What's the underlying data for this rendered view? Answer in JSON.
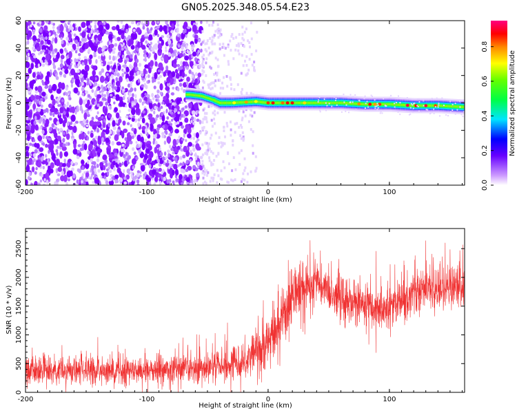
{
  "figure": {
    "title": "GN05.2025.348.05.54.E23"
  },
  "colors": {
    "snr_line": "#f03232",
    "frame": "#000000",
    "background": "#ffffff"
  },
  "chart_data": [
    {
      "type": "heatmap",
      "title": "",
      "xlabel": "Height of straight line (km)",
      "ylabel": "Frequency (Hz)",
      "xlim": [
        -200,
        162
      ],
      "ylim": [
        -60,
        60
      ],
      "x_ticks": [
        "-200",
        "-100",
        "0",
        "100"
      ],
      "y_ticks": [
        "60",
        "40",
        "20",
        "0",
        "-20",
        "-40",
        "-60"
      ],
      "grid": false,
      "colorbar": {
        "label": "Normalized spectral amplitude",
        "range": [
          0,
          0.95
        ],
        "ticks": [
          "0.0",
          "0.2",
          "0.4",
          "0.6",
          "0.8"
        ],
        "colormap": "purple-blue-cyan-green-yellow-red-magenta"
      },
      "features": {
        "noise_region_x": [
          -200,
          -55
        ],
        "sparse_noise_region_x": [
          -55,
          -10
        ],
        "ridge": {
          "description_points_x": [
            -65,
            -55,
            -45,
            -40,
            -30,
            -10,
            0,
            20,
            40,
            60,
            80,
            100,
            120,
            140,
            162
          ],
          "description_points_y": [
            6,
            5,
            2,
            0,
            0,
            1,
            0,
            0,
            0,
            0,
            -1,
            -1,
            -2,
            -2,
            -3
          ]
        }
      }
    },
    {
      "type": "line",
      "title": "",
      "xlabel": "Height of straight line (km)",
      "ylabel": "SNR (10 * v/v)",
      "xlim": [
        -200,
        162
      ],
      "ylim": [
        0,
        2850
      ],
      "x_ticks": [
        "-200",
        "-100",
        "0",
        "100"
      ],
      "y_ticks": [
        "0",
        "500",
        "1000",
        "1500",
        "2000",
        "2500"
      ],
      "grid": false,
      "series": [
        {
          "envelope_x": [
            -200,
            -150,
            -100,
            -60,
            -40,
            -20,
            -10,
            0,
            10,
            20,
            30,
            40,
            50,
            60,
            70,
            80,
            90,
            100,
            110,
            120,
            130,
            140,
            150,
            162
          ],
          "envelope_mean": [
            370,
            370,
            380,
            400,
            450,
            560,
            700,
            870,
            1250,
            1650,
            1850,
            1900,
            1800,
            1650,
            1550,
            1550,
            1400,
            1450,
            1600,
            1750,
            1800,
            1800,
            1850,
            1850
          ],
          "envelope_spread": [
            220,
            220,
            220,
            220,
            250,
            300,
            350,
            400,
            420,
            420,
            400,
            380,
            350,
            330,
            320,
            330,
            320,
            330,
            330,
            350,
            350,
            350,
            360,
            380
          ]
        }
      ]
    }
  ]
}
